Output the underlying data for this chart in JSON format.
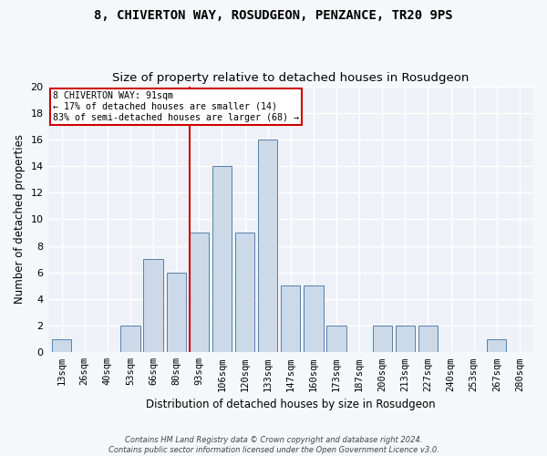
{
  "title1": "8, CHIVERTON WAY, ROSUDGEON, PENZANCE, TR20 9PS",
  "title2": "Size of property relative to detached houses in Rosudgeon",
  "xlabel": "Distribution of detached houses by size in Rosudgeon",
  "ylabel": "Number of detached properties",
  "bin_labels": [
    "13sqm",
    "26sqm",
    "40sqm",
    "53sqm",
    "66sqm",
    "80sqm",
    "93sqm",
    "106sqm",
    "120sqm",
    "133sqm",
    "147sqm",
    "160sqm",
    "173sqm",
    "187sqm",
    "200sqm",
    "213sqm",
    "227sqm",
    "240sqm",
    "253sqm",
    "267sqm",
    "280sqm"
  ],
  "bar_values": [
    1,
    0,
    0,
    2,
    7,
    6,
    9,
    14,
    9,
    16,
    5,
    5,
    2,
    0,
    2,
    2,
    2,
    0,
    0,
    1,
    0
  ],
  "bar_color": "#ccd9e8",
  "bar_edge_color": "#5580aa",
  "annotation_text": "8 CHIVERTON WAY: 91sqm\n← 17% of detached houses are smaller (14)\n83% of semi-detached houses are larger (68) →",
  "annotation_box_color": "#cc0000",
  "ylim": [
    0,
    20
  ],
  "yticks": [
    0,
    2,
    4,
    6,
    8,
    10,
    12,
    14,
    16,
    18,
    20
  ],
  "footnote1": "Contains HM Land Registry data © Crown copyright and database right 2024.",
  "footnote2": "Contains public sector information licensed under the Open Government Licence v3.0.",
  "background_color": "#eef2f8",
  "grid_color": "#ffffff",
  "fig_bg_color": "#f5f7fa"
}
